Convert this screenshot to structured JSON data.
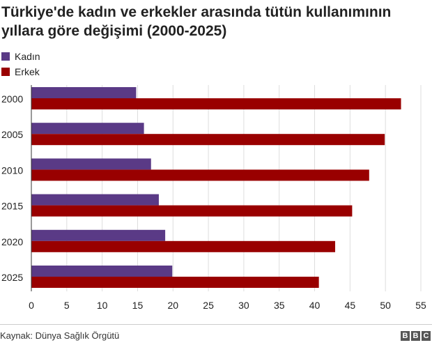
{
  "title": "Türkiye'de kadın ve erkekler arasında tütün kullanımının yıllara göre değişimi (2000-2025)",
  "source": "Kaynak: Dünya Sağlık Örgütü",
  "logo": [
    "B",
    "B",
    "C"
  ],
  "colors": {
    "kadin": "#5a3a86",
    "erkek": "#990000",
    "grid": "#dddddd",
    "axis": "#333333"
  },
  "chart_data": {
    "type": "bar",
    "orientation": "horizontal",
    "categories": [
      "2000",
      "2005",
      "2010",
      "2015",
      "2020",
      "2025"
    ],
    "series": [
      {
        "name": "Kadın",
        "values": [
          14.8,
          15.9,
          16.9,
          18.0,
          18.9,
          19.9
        ]
      },
      {
        "name": "Erkek",
        "values": [
          52.2,
          49.9,
          47.7,
          45.3,
          42.9,
          40.6
        ]
      }
    ],
    "xlim": [
      0,
      55
    ],
    "xticks": [
      0,
      5,
      10,
      15,
      20,
      25,
      30,
      35,
      40,
      45,
      50,
      55
    ],
    "grid": true,
    "legend": "top-left"
  }
}
